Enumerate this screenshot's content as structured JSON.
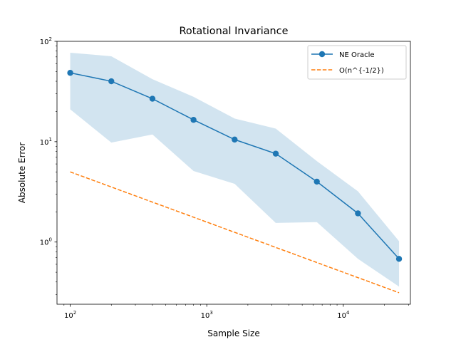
{
  "chart_data": {
    "type": "line",
    "title": "Rotational Invariance",
    "xlabel": "Sample Size",
    "ylabel": "Absolute Error",
    "xscale": "log",
    "yscale": "log",
    "xlim": [
      80,
      31000
    ],
    "ylim": [
      0.24,
      100
    ],
    "x_ticks": [
      {
        "base": "10",
        "exp": "2",
        "value": 100
      },
      {
        "base": "10",
        "exp": "3",
        "value": 1000
      },
      {
        "base": "10",
        "exp": "4",
        "value": 10000
      }
    ],
    "y_ticks": [
      {
        "base": "10",
        "exp": "0",
        "value": 1
      },
      {
        "base": "10",
        "exp": "1",
        "value": 10
      },
      {
        "base": "10",
        "exp": "2",
        "value": 100
      }
    ],
    "legend_position": "top-right",
    "series": [
      {
        "name": "NE Oracle",
        "color": "#1f77b4",
        "style": "solid-with-markers",
        "x": [
          100,
          200,
          400,
          800,
          1600,
          3200,
          6400,
          12800,
          25600
        ],
        "values": [
          48.5,
          40.0,
          26.8,
          16.5,
          10.5,
          7.6,
          4.0,
          1.93,
          0.68
        ],
        "band_upper": [
          77,
          71,
          42,
          28,
          17,
          13.5,
          6.4,
          3.2,
          1.02
        ],
        "band_lower": [
          21,
          9.8,
          11.8,
          5.1,
          3.8,
          1.55,
          1.58,
          0.68,
          0.36
        ]
      },
      {
        "name": "O(n^{-1/2})",
        "color": "#ff7f0e",
        "style": "dashed",
        "x": [
          100,
          25600
        ],
        "values": [
          5.0,
          0.3125
        ]
      }
    ]
  }
}
